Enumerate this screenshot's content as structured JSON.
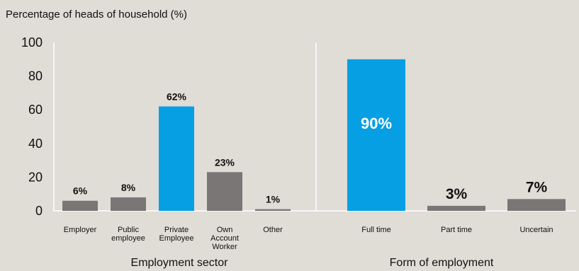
{
  "chart_data": [
    {
      "type": "bar",
      "ytitle": "Percentage of heads of household (%)",
      "ylim": [
        0,
        100
      ],
      "yticks": [
        "0",
        "20",
        "40",
        "60",
        "80",
        "100"
      ],
      "group_label": "Employment sector",
      "categories": [
        [
          "Employer"
        ],
        [
          "Public",
          "employee"
        ],
        [
          "Private",
          "Employee"
        ],
        [
          "Own",
          "Account",
          "Worker"
        ],
        [
          "Other"
        ]
      ],
      "values": [
        6,
        8,
        62,
        23,
        1
      ],
      "value_labels": [
        "6%",
        "8%",
        "62%",
        "23%",
        "1%"
      ],
      "highlight_index": 2
    },
    {
      "type": "bar",
      "ylim": [
        0,
        100
      ],
      "group_label": "Form of employment",
      "categories": [
        [
          "Full time"
        ],
        [
          "Part time"
        ],
        [
          "Uncertain"
        ]
      ],
      "values": [
        90,
        3,
        7
      ],
      "value_labels": [
        "90%",
        "3%",
        "7%"
      ],
      "highlight_index": 0
    }
  ],
  "colors": {
    "background": "#e0dcd6",
    "bar_default": "#7b7676",
    "bar_highlight": "#069fe3",
    "axis": "#ffffff",
    "text": "#111111",
    "label_on_highlight": "#ffffff"
  }
}
